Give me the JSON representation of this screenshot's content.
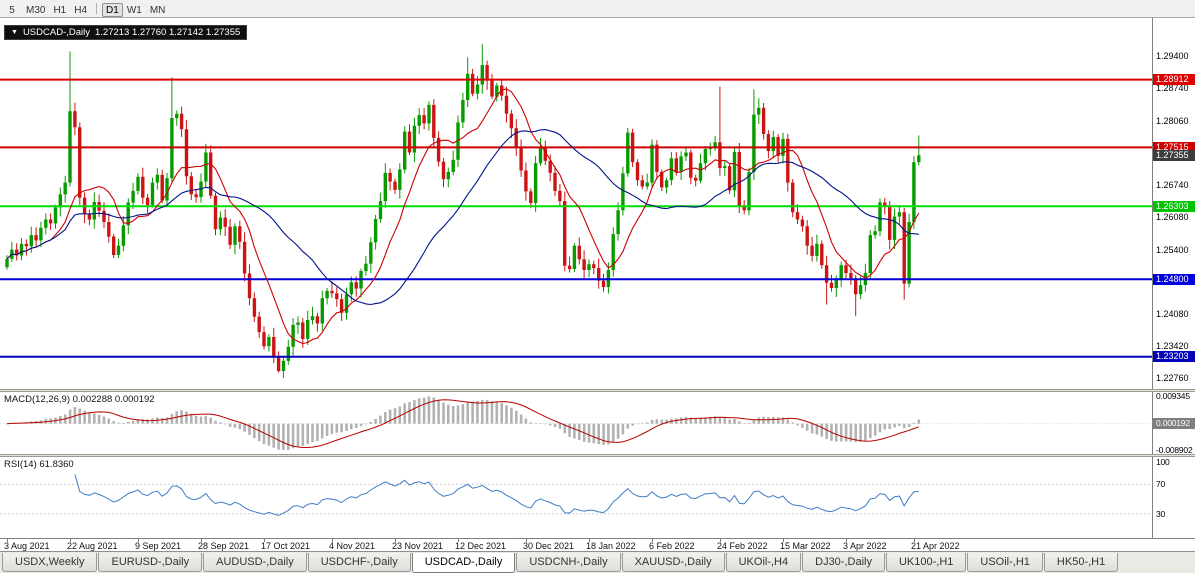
{
  "toolbar": {
    "buttons": [
      "5",
      "M30",
      "H1",
      "H4",
      "D1",
      "W1",
      "MN"
    ],
    "active": "D1",
    "separator_after_index": 3
  },
  "symbol_box": {
    "icon": "▼",
    "symbol": "USDCAD-,Daily",
    "ohlc": "1.27213 1.27760 1.27142 1.27355"
  },
  "colors": {
    "up": "#089b00",
    "down": "#cc1414",
    "ma_fast": "#cc0000",
    "ma_slow": "#001489",
    "macd_hist": "#b2b2b2",
    "macd_signal": "#b80000",
    "rsi": "#3d7dc8",
    "resistance": "#dd0000",
    "support_green": "#00dd00",
    "support_blue": "#0000cc"
  },
  "hlines": [
    {
      "price": 1.28912,
      "color": "#dd0000",
      "width": 2
    },
    {
      "price": 1.27515,
      "color": "#cc0000",
      "width": 2
    },
    {
      "price": 1.26303,
      "color": "#00dd00",
      "width": 2
    },
    {
      "price": 1.248,
      "color": "#0000dd",
      "width": 2
    },
    {
      "price": 1.23203,
      "color": "#0000bb",
      "width": 2
    }
  ],
  "price_axis": {
    "gridlines": [
      {
        "text": "1.29400",
        "value": 1.294
      },
      {
        "text": "1.28740",
        "value": 1.2874
      },
      {
        "text": "1.28060",
        "value": 1.2806
      },
      {
        "text": "1.26740",
        "value": 1.2674
      },
      {
        "text": "1.26080",
        "value": 1.2608
      },
      {
        "text": "1.25400",
        "value": 1.254
      },
      {
        "text": "1.24080",
        "value": 1.2408
      },
      {
        "text": "1.23420",
        "value": 1.2342
      },
      {
        "text": "1.22760",
        "value": 1.2276
      }
    ],
    "badges": [
      {
        "text": "1.28912",
        "value": 1.28912,
        "bg": "#dd0000",
        "fg": "#ffffff"
      },
      {
        "text": "1.27515",
        "value": 1.27515,
        "bg": "#cc0000",
        "fg": "#ffffff"
      },
      {
        "text": "1.27355",
        "value": 1.27355,
        "bg": "#3d3d3d",
        "fg": "#ffffff"
      },
      {
        "text": "1.26303",
        "value": 1.26303,
        "bg": "#00c400",
        "fg": "#ffffff"
      },
      {
        "text": "1.24800",
        "value": 1.248,
        "bg": "#0000dd",
        "fg": "#ffffff"
      },
      {
        "text": "1.23203",
        "value": 1.23203,
        "bg": "#0000bb",
        "fg": "#ffffff"
      }
    ]
  },
  "indicators": {
    "macd": {
      "label": "MACD(12,26,9) 0.002288 0.000192",
      "value_main": 0.002288,
      "value_signal": 0.000192,
      "range": {
        "top": 0.009345,
        "bottom": -0.008902
      },
      "axis": [
        {
          "text": "0.009345",
          "value": 0.009345,
          "badge": false
        },
        {
          "text": "0.000192",
          "value": 0.000192,
          "badge": true,
          "bg": "#7f7f7f"
        },
        {
          "text": "-0.008902",
          "value": -0.008902,
          "badge": false
        }
      ]
    },
    "rsi": {
      "label": "RSI(14) 61.8360",
      "value": 61.836,
      "levels": [
        70,
        30
      ],
      "axis": [
        {
          "text": "100",
          "value": 100
        },
        {
          "text": "70",
          "value": 70
        },
        {
          "text": "30",
          "value": 30
        }
      ]
    }
  },
  "dates": [
    {
      "label": "3 Aug 2021",
      "index": 0
    },
    {
      "label": "22 Aug 2021",
      "index": 13
    },
    {
      "label": "9 Sep 2021",
      "index": 27
    },
    {
      "label": "28 Sep 2021",
      "index": 40
    },
    {
      "label": "17 Oct 2021",
      "index": 53
    },
    {
      "label": "4 Nov 2021",
      "index": 67
    },
    {
      "label": "23 Nov 2021",
      "index": 80
    },
    {
      "label": "12 Dec 2021",
      "index": 93
    },
    {
      "label": "30 Dec 2021",
      "index": 107
    },
    {
      "label": "18 Jan 2022",
      "index": 120
    },
    {
      "label": "6 Feb 2022",
      "index": 133
    },
    {
      "label": "24 Feb 2022",
      "index": 147
    },
    {
      "label": "15 Mar 2022",
      "index": 160
    },
    {
      "label": "3 Apr 2022",
      "index": 173
    },
    {
      "label": "21 Apr 2022",
      "index": 187
    }
  ],
  "tabs": {
    "items": [
      "USDX,Weekly",
      "EURUSD-,Daily",
      "AUDUSD-,Daily",
      "USDCHF-,Daily",
      "USDCAD-,Daily",
      "USDCNH-,Daily",
      "XAUUSD-,Daily",
      "UKOil-,H4",
      "DJ30-,Daily",
      "UK100-,H1",
      "USOil-,H1",
      "HK50-,H1"
    ],
    "active_index": 4
  },
  "chart_data": {
    "type": "candlestick",
    "symbol": "USDCAD-",
    "timeframe": "Daily",
    "current_ohlc": {
      "open": 1.27213,
      "high": 1.2776,
      "low": 1.27142,
      "close": 1.27355
    },
    "price_axis_range": {
      "top": 1.3018,
      "bottom": 1.2254
    },
    "first_open": 1.2505,
    "closes": [
      1.2522,
      1.2541,
      1.2529,
      1.2553,
      1.2548,
      1.2571,
      1.256,
      1.2586,
      1.2603,
      1.2595,
      1.2628,
      1.2655,
      1.2679,
      1.2826,
      1.2793,
      1.2648,
      1.2615,
      1.2603,
      1.2639,
      1.2621,
      1.2598,
      1.2568,
      1.253,
      1.2549,
      1.2591,
      1.2638,
      1.2662,
      1.2691,
      1.2648,
      1.2633,
      1.2679,
      1.2695,
      1.2642,
      1.2688,
      1.2812,
      1.2821,
      1.2789,
      1.2692,
      1.2655,
      1.2649,
      1.2681,
      1.2741,
      1.2652,
      1.2583,
      1.2607,
      1.2588,
      1.2551,
      1.2589,
      1.2557,
      1.2492,
      1.2441,
      1.2403,
      1.2371,
      1.2342,
      1.2361,
      1.2322,
      1.2291,
      1.2312,
      1.2341,
      1.2386,
      1.2391,
      1.2357,
      1.2396,
      1.2404,
      1.2389,
      1.2441,
      1.2456,
      1.2451,
      1.2439,
      1.2411,
      1.2449,
      1.2474,
      1.2461,
      1.2497,
      1.2512,
      1.2556,
      1.2604,
      1.2641,
      1.2699,
      1.2681,
      1.2664,
      1.2706,
      1.2784,
      1.2741,
      1.2796,
      1.2818,
      1.2801,
      1.2839,
      1.2771,
      1.2722,
      1.2686,
      1.2701,
      1.2726,
      1.2803,
      1.2849,
      1.2903,
      1.2862,
      1.2881,
      1.2921,
      1.2889,
      1.2856,
      1.2879,
      1.2858,
      1.2821,
      1.2791,
      1.2753,
      1.2704,
      1.2661,
      1.2637,
      1.2719,
      1.2752,
      1.2724,
      1.2699,
      1.2662,
      1.2641,
      1.2508,
      1.2501,
      1.2549,
      1.2521,
      1.2499,
      1.2511,
      1.2503,
      1.2477,
      1.2464,
      1.2499,
      1.2573,
      1.2622,
      1.2698,
      1.2782,
      1.2721,
      1.2684,
      1.2671,
      1.2679,
      1.2757,
      1.2701,
      1.2669,
      1.2684,
      1.2729,
      1.2701,
      1.2733,
      1.2741,
      1.2689,
      1.2683,
      1.2719,
      1.2748,
      1.2753,
      1.2762,
      1.2709,
      1.2713,
      1.2663,
      1.2742,
      1.2631,
      1.2622,
      1.2701,
      1.2819,
      1.2833,
      1.2779,
      1.2744,
      1.2773,
      1.2734,
      1.2769,
      1.2679,
      1.2618,
      1.2603,
      1.2589,
      1.2549,
      1.2528,
      1.2553,
      1.2509,
      1.2473,
      1.2462,
      1.2481,
      1.2509,
      1.2493,
      1.2482,
      1.2449,
      1.2468,
      1.2493,
      1.2571,
      1.2579,
      1.2638,
      1.2632,
      1.2561,
      1.2609,
      1.2618,
      1.2471,
      1.2598,
      1.2721,
      1.27355
    ],
    "wick_overrides": {
      "13": {
        "h": 1.2949
      },
      "34": {
        "h": 1.2896
      },
      "56": {
        "l": 1.2288
      },
      "95": {
        "h": 1.2937
      },
      "98": {
        "h": 1.2964
      },
      "147": {
        "h": 1.2877
      },
      "154": {
        "h": 1.2871
      },
      "169": {
        "l": 1.2428
      },
      "175": {
        "l": 1.2404
      },
      "185": {
        "l": 1.2438
      },
      "188": {
        "h": 1.2776,
        "l": 1.27142
      }
    },
    "moving_averages": [
      {
        "period": 10,
        "color": "#cc0000"
      },
      {
        "period": 30,
        "color": "#001489"
      }
    ],
    "macd": {
      "fast": 12,
      "slow": 26,
      "signal": 9
    },
    "rsi": {
      "period": 14
    }
  }
}
